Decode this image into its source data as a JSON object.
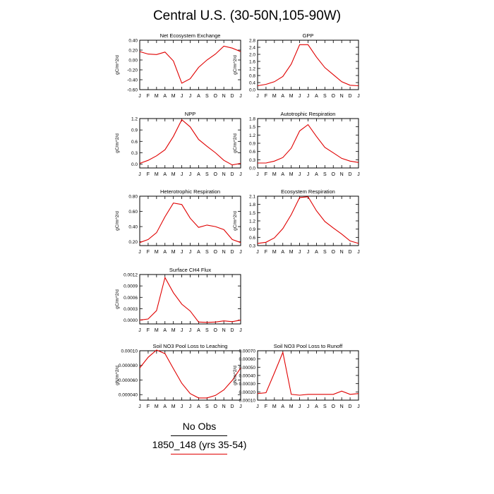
{
  "title": "Central U.S. (30-50N,105-90W)",
  "legend": {
    "obs_label": "No Obs",
    "model_label": "1850_148 (yrs 35-54)",
    "model_color": "#e00000",
    "obs_color": "#000000"
  },
  "months": [
    "J",
    "F",
    "M",
    "A",
    "M",
    "J",
    "J",
    "A",
    "S",
    "O",
    "N",
    "D",
    "J"
  ],
  "chart_data": [
    {
      "type": "line",
      "title": "Net Ecosystem Exchange",
      "ylabel": "gC/m^2/d",
      "ylim": [
        -0.6,
        0.4
      ],
      "yticks": [
        "0.40",
        "0.20",
        "0.00",
        "-0.20",
        "-0.40",
        "-0.60"
      ],
      "ytick_values": [
        0.4,
        0.2,
        0.0,
        -0.2,
        -0.4,
        -0.6
      ],
      "series": [
        {
          "values": [
            0.17,
            0.12,
            0.11,
            0.16,
            -0.02,
            -0.47,
            -0.38,
            -0.15,
            0.0,
            0.12,
            0.28,
            0.24,
            0.17
          ]
        }
      ]
    },
    {
      "type": "line",
      "title": "GPP",
      "ylabel": "gC/m^2/d",
      "ylim": [
        0.0,
        2.8
      ],
      "yticks": [
        "2.8",
        "2.4",
        "2.0",
        "1.6",
        "1.2",
        "0.8",
        "0.4",
        "0.0"
      ],
      "ytick_values": [
        2.8,
        2.4,
        2.0,
        1.6,
        1.2,
        0.8,
        0.4,
        0.0
      ],
      "series": [
        {
          "values": [
            0.22,
            0.3,
            0.45,
            0.75,
            1.45,
            2.55,
            2.55,
            1.85,
            1.25,
            0.85,
            0.45,
            0.25,
            0.22
          ]
        }
      ]
    },
    {
      "type": "line",
      "title": "NPP",
      "ylabel": "gC/m^2/d",
      "ylim": [
        -0.1,
        1.2
      ],
      "yticks": [
        "1.2",
        "0.9",
        "0.6",
        "0.3",
        "0.0"
      ],
      "ytick_values": [
        1.2,
        0.9,
        0.6,
        0.3,
        0.0
      ],
      "series": [
        {
          "values": [
            0.02,
            0.1,
            0.22,
            0.38,
            0.73,
            1.17,
            0.98,
            0.65,
            0.47,
            0.3,
            0.1,
            -0.02,
            0.02
          ]
        }
      ]
    },
    {
      "type": "line",
      "title": "Autotrophic Respiration",
      "ylabel": "gC/m^2/d",
      "ylim": [
        0.0,
        1.8
      ],
      "yticks": [
        "1.8",
        "1.5",
        "1.2",
        "0.9",
        "0.6",
        "0.3",
        "0.0"
      ],
      "ytick_values": [
        1.8,
        1.5,
        1.2,
        0.9,
        0.6,
        0.3,
        0.0
      ],
      "series": [
        {
          "values": [
            0.18,
            0.18,
            0.25,
            0.38,
            0.72,
            1.35,
            1.58,
            1.15,
            0.75,
            0.55,
            0.35,
            0.25,
            0.2
          ]
        }
      ]
    },
    {
      "type": "line",
      "title": "Heterotrophic Respiration",
      "ylabel": "gC/m^2/d",
      "ylim": [
        0.15,
        0.8
      ],
      "yticks": [
        "0.80",
        "0.60",
        "0.40",
        "0.20"
      ],
      "ytick_values": [
        0.8,
        0.6,
        0.4,
        0.2
      ],
      "series": [
        {
          "values": [
            0.19,
            0.23,
            0.32,
            0.53,
            0.71,
            0.69,
            0.51,
            0.39,
            0.42,
            0.4,
            0.36,
            0.23,
            0.19
          ]
        }
      ]
    },
    {
      "type": "line",
      "title": "Ecosystem Respiration",
      "ylabel": "gC/m^2/d",
      "ylim": [
        0.3,
        2.1
      ],
      "yticks": [
        "2.1",
        "1.8",
        "1.5",
        "1.2",
        "0.9",
        "0.6",
        "0.3"
      ],
      "ytick_values": [
        2.1,
        1.8,
        1.5,
        1.2,
        0.9,
        0.6,
        0.3
      ],
      "series": [
        {
          "values": [
            0.38,
            0.42,
            0.58,
            0.92,
            1.43,
            2.05,
            2.08,
            1.57,
            1.18,
            0.94,
            0.72,
            0.47,
            0.38
          ]
        }
      ]
    },
    {
      "type": "line",
      "title": "Surface CH4 Flux",
      "ylabel": "gC/m^2/d",
      "ylim": [
        -0.0001,
        0.0012
      ],
      "yticks": [
        "0.0012",
        "0.0009",
        "0.0006",
        "0.0003",
        "0.0000"
      ],
      "ytick_values": [
        0.0012,
        0.0009,
        0.0006,
        0.0003,
        0.0
      ],
      "series": [
        {
          "values": [
            0.0,
            3e-05,
            0.00025,
            0.00112,
            0.00072,
            0.00042,
            0.00024,
            -5e-05,
            -6e-05,
            -5e-05,
            -2e-05,
            -4e-05,
            0.0
          ]
        }
      ]
    },
    {
      "type": "line",
      "title": "Soil NO3 Pool Loss to Leaching",
      "ylabel": "gN/m^2/d",
      "ylim": [
        3.25e-05,
        0.0001
      ],
      "yticks": [
        "0.00010",
        "0.000080",
        "0.000060",
        "0.000040"
      ],
      "ytick_values": [
        0.0001,
        8e-05,
        6e-05,
        4e-05
      ],
      "series": [
        {
          "values": [
            7.65e-05,
            9.1e-05,
            0.000101,
            9.6e-05,
            7.55e-05,
            5.55e-05,
            4.15e-05,
            3.55e-05,
            3.55e-05,
            3.9e-05,
            4.65e-05,
            5.95e-05,
            7.65e-05
          ]
        }
      ]
    },
    {
      "type": "line",
      "title": "Soil NO3 Pool Loss to Runoff",
      "ylabel": "gN/m^2/d",
      "ylim": [
        0.0001,
        0.0007
      ],
      "yticks": [
        "0.00070",
        "0.00060",
        "0.00050",
        "0.00040",
        "0.00030",
        "0.00020",
        "0.00010"
      ],
      "ytick_values": [
        0.0007,
        0.0006,
        0.0005,
        0.0004,
        0.0003,
        0.0002,
        0.0001
      ],
      "series": [
        {
          "values": [
            0.00018,
            0.00019,
            0.00043,
            0.00068,
            0.00017,
            0.00016,
            0.00017,
            0.00017,
            0.00017,
            0.00017,
            0.00021,
            0.00017,
            0.00018
          ]
        }
      ]
    }
  ]
}
